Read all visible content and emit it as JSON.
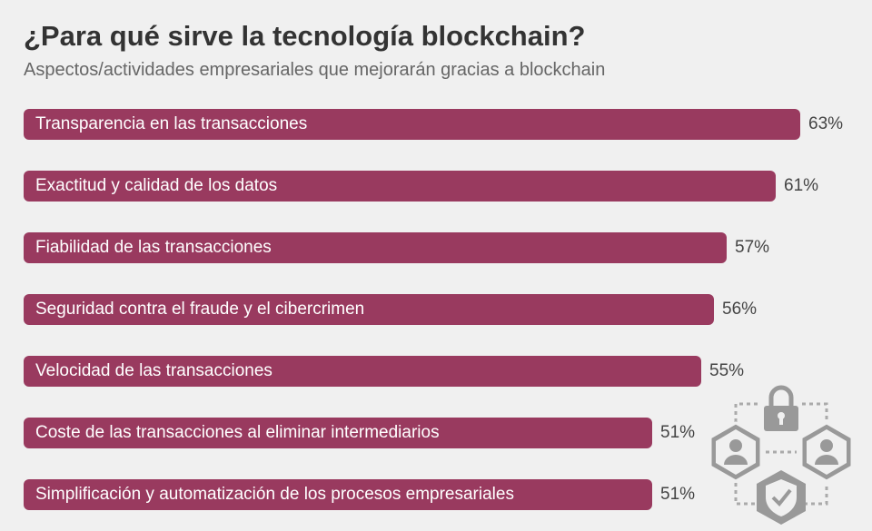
{
  "chart_data": {
    "type": "bar",
    "orientation": "horizontal",
    "title": "¿Para qué sirve la tecnología blockchain?",
    "subtitle": "Aspectos/actividades empresariales que mejorarán gracias a blockchain",
    "categories": [
      "Transparencia en las transacciones",
      "Exactitud y calidad de los datos",
      "Fiabilidad de las transacciones",
      "Seguridad contra el fraude y el cibercrimen",
      "Velocidad de las transacciones",
      "Coste de las transacciones al eliminar intermediarios",
      "Simplificación y automatización de los procesos empresariales"
    ],
    "values": [
      63,
      61,
      57,
      56,
      55,
      51,
      51
    ],
    "value_labels": [
      "63%",
      "61%",
      "57%",
      "56%",
      "55%",
      "51%",
      "51%"
    ],
    "unit": "%",
    "xlim": [
      0,
      100
    ],
    "grid": false,
    "bar_color": "#993a5f",
    "background": "#f0f0f0"
  },
  "decoration": {
    "icon": "blockchain-network-icon",
    "icon_color": "#999999"
  }
}
